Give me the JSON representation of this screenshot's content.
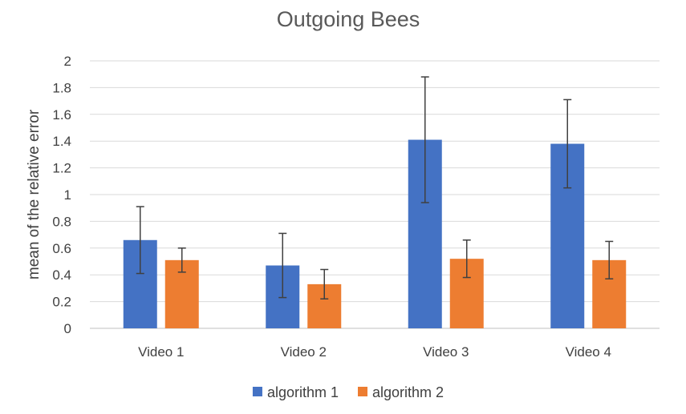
{
  "chart_data": {
    "type": "bar",
    "title": "Outgoing Bees",
    "xlabel": "",
    "ylabel": "mean of the relative error",
    "categories": [
      "Video 1",
      "Video 2",
      "Video 3",
      "Video 4"
    ],
    "ylim": [
      0,
      2
    ],
    "yticks": [
      0,
      0.2,
      0.4,
      0.6,
      0.8,
      1,
      1.2,
      1.4,
      1.6,
      1.8,
      2
    ],
    "ytick_labels": [
      "0",
      "0.2",
      "0.4",
      "0.6",
      "0.8",
      "1",
      "1.2",
      "1.4",
      "1.6",
      "1.8",
      "2"
    ],
    "grid": true,
    "legend_position": "bottom",
    "series": [
      {
        "name": "algorithm 1",
        "color": "#4472c4",
        "values": [
          0.66,
          0.47,
          1.41,
          1.38
        ],
        "error": [
          0.25,
          0.24,
          0.47,
          0.33
        ]
      },
      {
        "name": "algorithm 2",
        "color": "#ed7d31",
        "values": [
          0.51,
          0.33,
          0.52,
          0.51
        ],
        "error": [
          0.09,
          0.11,
          0.14,
          0.14
        ]
      }
    ]
  }
}
